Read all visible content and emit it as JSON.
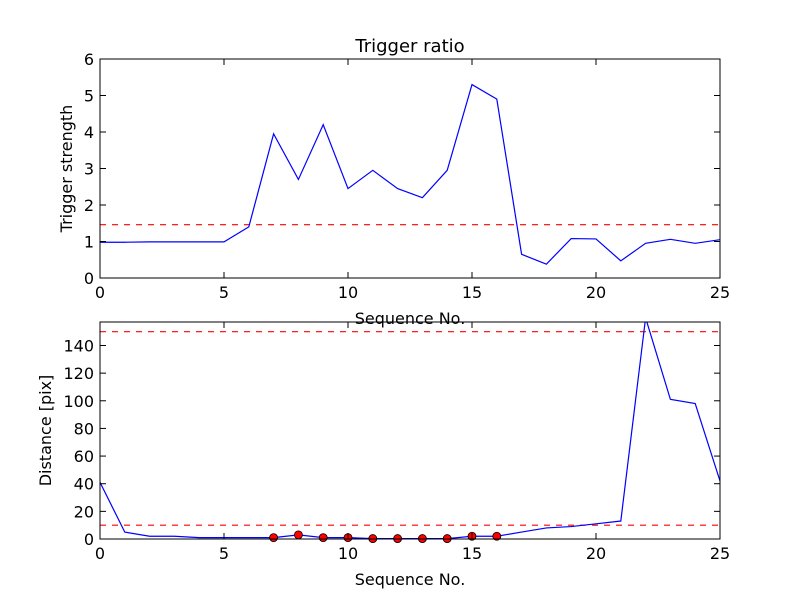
{
  "chart_data": [
    {
      "type": "line",
      "title": "Trigger ratio",
      "xlabel": "Sequence No.",
      "ylabel": "Trigger strength",
      "xlim": [
        0,
        25
      ],
      "ylim": [
        0,
        6
      ],
      "x_ticks": [
        "0",
        "5",
        "10",
        "15",
        "20",
        "25"
      ],
      "y_ticks": [
        "0",
        "1",
        "2",
        "3",
        "4",
        "5",
        "6"
      ],
      "grid": false,
      "series": [
        {
          "color": "#0000ff",
          "x": [
            0,
            1,
            2,
            3,
            4,
            5,
            6,
            7,
            8,
            9,
            10,
            11,
            12,
            13,
            14,
            15,
            16,
            17,
            18,
            19,
            20,
            21,
            22,
            23,
            24,
            25
          ],
          "values": [
            0.98,
            0.98,
            0.99,
            0.99,
            0.99,
            0.99,
            1.4,
            3.95,
            2.7,
            4.2,
            2.45,
            2.95,
            2.45,
            2.2,
            2.95,
            5.3,
            4.9,
            0.65,
            0.38,
            1.08,
            1.07,
            0.47,
            0.95,
            1.06,
            0.95,
            1.05
          ]
        }
      ],
      "hlines": [
        {
          "y": 1.46,
          "color": "#ff0000",
          "style": "dashed"
        }
      ]
    },
    {
      "type": "line",
      "title": "",
      "xlabel": "Sequence No.",
      "ylabel": "Distance [pix]",
      "xlim": [
        0,
        25
      ],
      "ylim": [
        0,
        157
      ],
      "x_ticks": [
        "0",
        "5",
        "10",
        "15",
        "20",
        "25"
      ],
      "y_ticks": [
        "0",
        "20",
        "40",
        "60",
        "80",
        "100",
        "120",
        "140"
      ],
      "grid": false,
      "series": [
        {
          "color": "#0000ff",
          "x": [
            0,
            1,
            2,
            3,
            4,
            5,
            6,
            7,
            8,
            9,
            10,
            11,
            12,
            13,
            14,
            15,
            16,
            17,
            18,
            19,
            20,
            21,
            22,
            23,
            24,
            25
          ],
          "values": [
            41,
            5,
            2,
            2,
            1,
            1,
            1,
            1,
            3,
            1,
            1,
            0.3,
            0.3,
            0.3,
            0.3,
            2,
            2,
            5,
            8,
            9,
            11,
            13,
            160,
            101,
            98,
            42
          ]
        }
      ],
      "markers": {
        "color": "#ff0000",
        "x": [
          7,
          8,
          9,
          10,
          11,
          12,
          13,
          14,
          15,
          16
        ],
        "values": [
          1,
          3,
          1,
          1,
          0.3,
          0.3,
          0.3,
          0.3,
          2,
          2
        ]
      },
      "hlines": [
        {
          "y": 10,
          "color": "#ff0000",
          "style": "dashed"
        },
        {
          "y": 150,
          "color": "#ff0000",
          "style": "dashed"
        }
      ]
    }
  ]
}
